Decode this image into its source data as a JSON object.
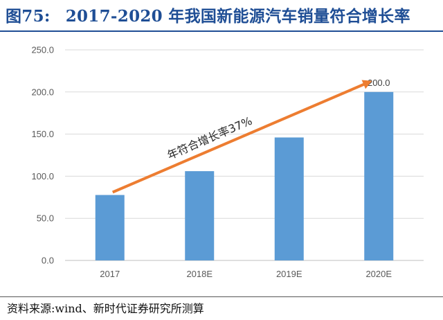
{
  "figure": {
    "number": "图75:",
    "title": "2017-2020 年我国新能源汽车销量符合增长率"
  },
  "chart_data": {
    "type": "bar",
    "categories": [
      "2017",
      "2018E",
      "2019E",
      "2020E"
    ],
    "values": [
      77.7,
      106.0,
      146.0,
      200.0
    ],
    "data_labels": [
      "",
      "",
      "",
      "200.0"
    ],
    "y_ticks": [
      "0.0",
      "50.0",
      "100.0",
      "150.0",
      "200.0",
      "250.0"
    ],
    "ylim": [
      0,
      250
    ],
    "grid": true,
    "xlabel": "",
    "ylabel": "",
    "annotation": "年符合增长率37%",
    "bar_color": "#5b9bd5",
    "arrow_color": "#ed7d31"
  },
  "source": "资料来源:wind、新时代证券研究所测算",
  "colors": {
    "title": "#1f4e95",
    "grid": "#d9d9d9",
    "tick_text": "#595959"
  }
}
